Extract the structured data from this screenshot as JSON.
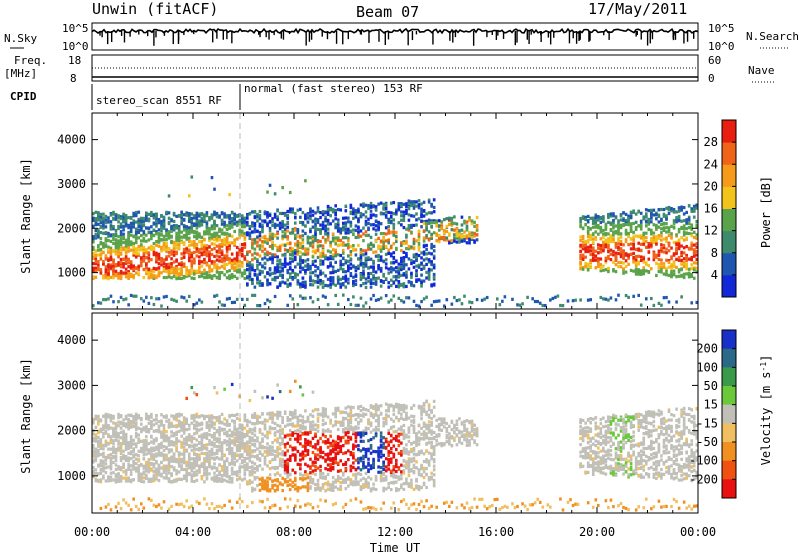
{
  "header": {
    "station": "Unwin (fitACF)",
    "beam": "Beam 07",
    "date": "17/May/2011"
  },
  "panels": {
    "nsky_label": "N.Sky",
    "nsky_ticks": [
      "10^5",
      "10^0"
    ],
    "nsearch_label": "N.Search",
    "nsearch_ticks": [
      "10^5",
      "10^0"
    ],
    "freq_label_top": "Freq.",
    "freq_label_unit": "[MHz]",
    "freq_ticks": [
      "18",
      "8"
    ],
    "nave_label": "Nave",
    "nave_ticks": [
      "60",
      "0"
    ],
    "cpid_label": "CPID",
    "cpid_segments": [
      "stereo_scan 8551 RF",
      "normal (fast stereo) 153 RF"
    ]
  },
  "chart_data": [
    {
      "type": "heatmap",
      "name": "Power",
      "ylabel": "Slant Range [km]",
      "xlabel": "Time UT",
      "x_ticks": [
        "00:00",
        "04:00",
        "08:00",
        "12:00",
        "16:00",
        "20:00",
        "00:00"
      ],
      "y_ticks": [
        1000,
        2000,
        3000,
        4000
      ],
      "ylim": [
        180,
        4600
      ],
      "xlim_hours": [
        0,
        24
      ],
      "colorbar": {
        "label": "Power [dB]",
        "ticks": [
          4,
          8,
          12,
          16,
          20,
          24,
          28
        ],
        "range": [
          0,
          32
        ],
        "colors": [
          "#1028d8",
          "#1f56b0",
          "#3d8a6c",
          "#5aa34a",
          "#f2c31a",
          "#f59a1a",
          "#f0641a",
          "#e81e10"
        ]
      }
    },
    {
      "type": "heatmap",
      "name": "Velocity",
      "ylabel": "Slant Range [km]",
      "xlabel": "Time UT",
      "x_ticks": [
        "00:00",
        "04:00",
        "08:00",
        "12:00",
        "16:00",
        "20:00",
        "00:00"
      ],
      "y_ticks": [
        1000,
        2000,
        3000,
        4000
      ],
      "ylim": [
        180,
        4600
      ],
      "xlim_hours": [
        0,
        24
      ],
      "colorbar": {
        "label": "Velocity [m s-1]",
        "ticks": [
          "200",
          "100",
          "50",
          "15",
          "-15",
          "-50",
          "-100",
          "-200"
        ],
        "colors": [
          "#1830c8",
          "#2a6a88",
          "#3a9a4a",
          "#6ac83a",
          "#c0c0b8",
          "#f0c060",
          "#f09020",
          "#f05010",
          "#e81010"
        ]
      }
    }
  ],
  "xaxis": {
    "label": "Time UT",
    "ticks": [
      "00:00",
      "04:00",
      "08:00",
      "12:00",
      "16:00",
      "20:00",
      "00:00"
    ]
  }
}
